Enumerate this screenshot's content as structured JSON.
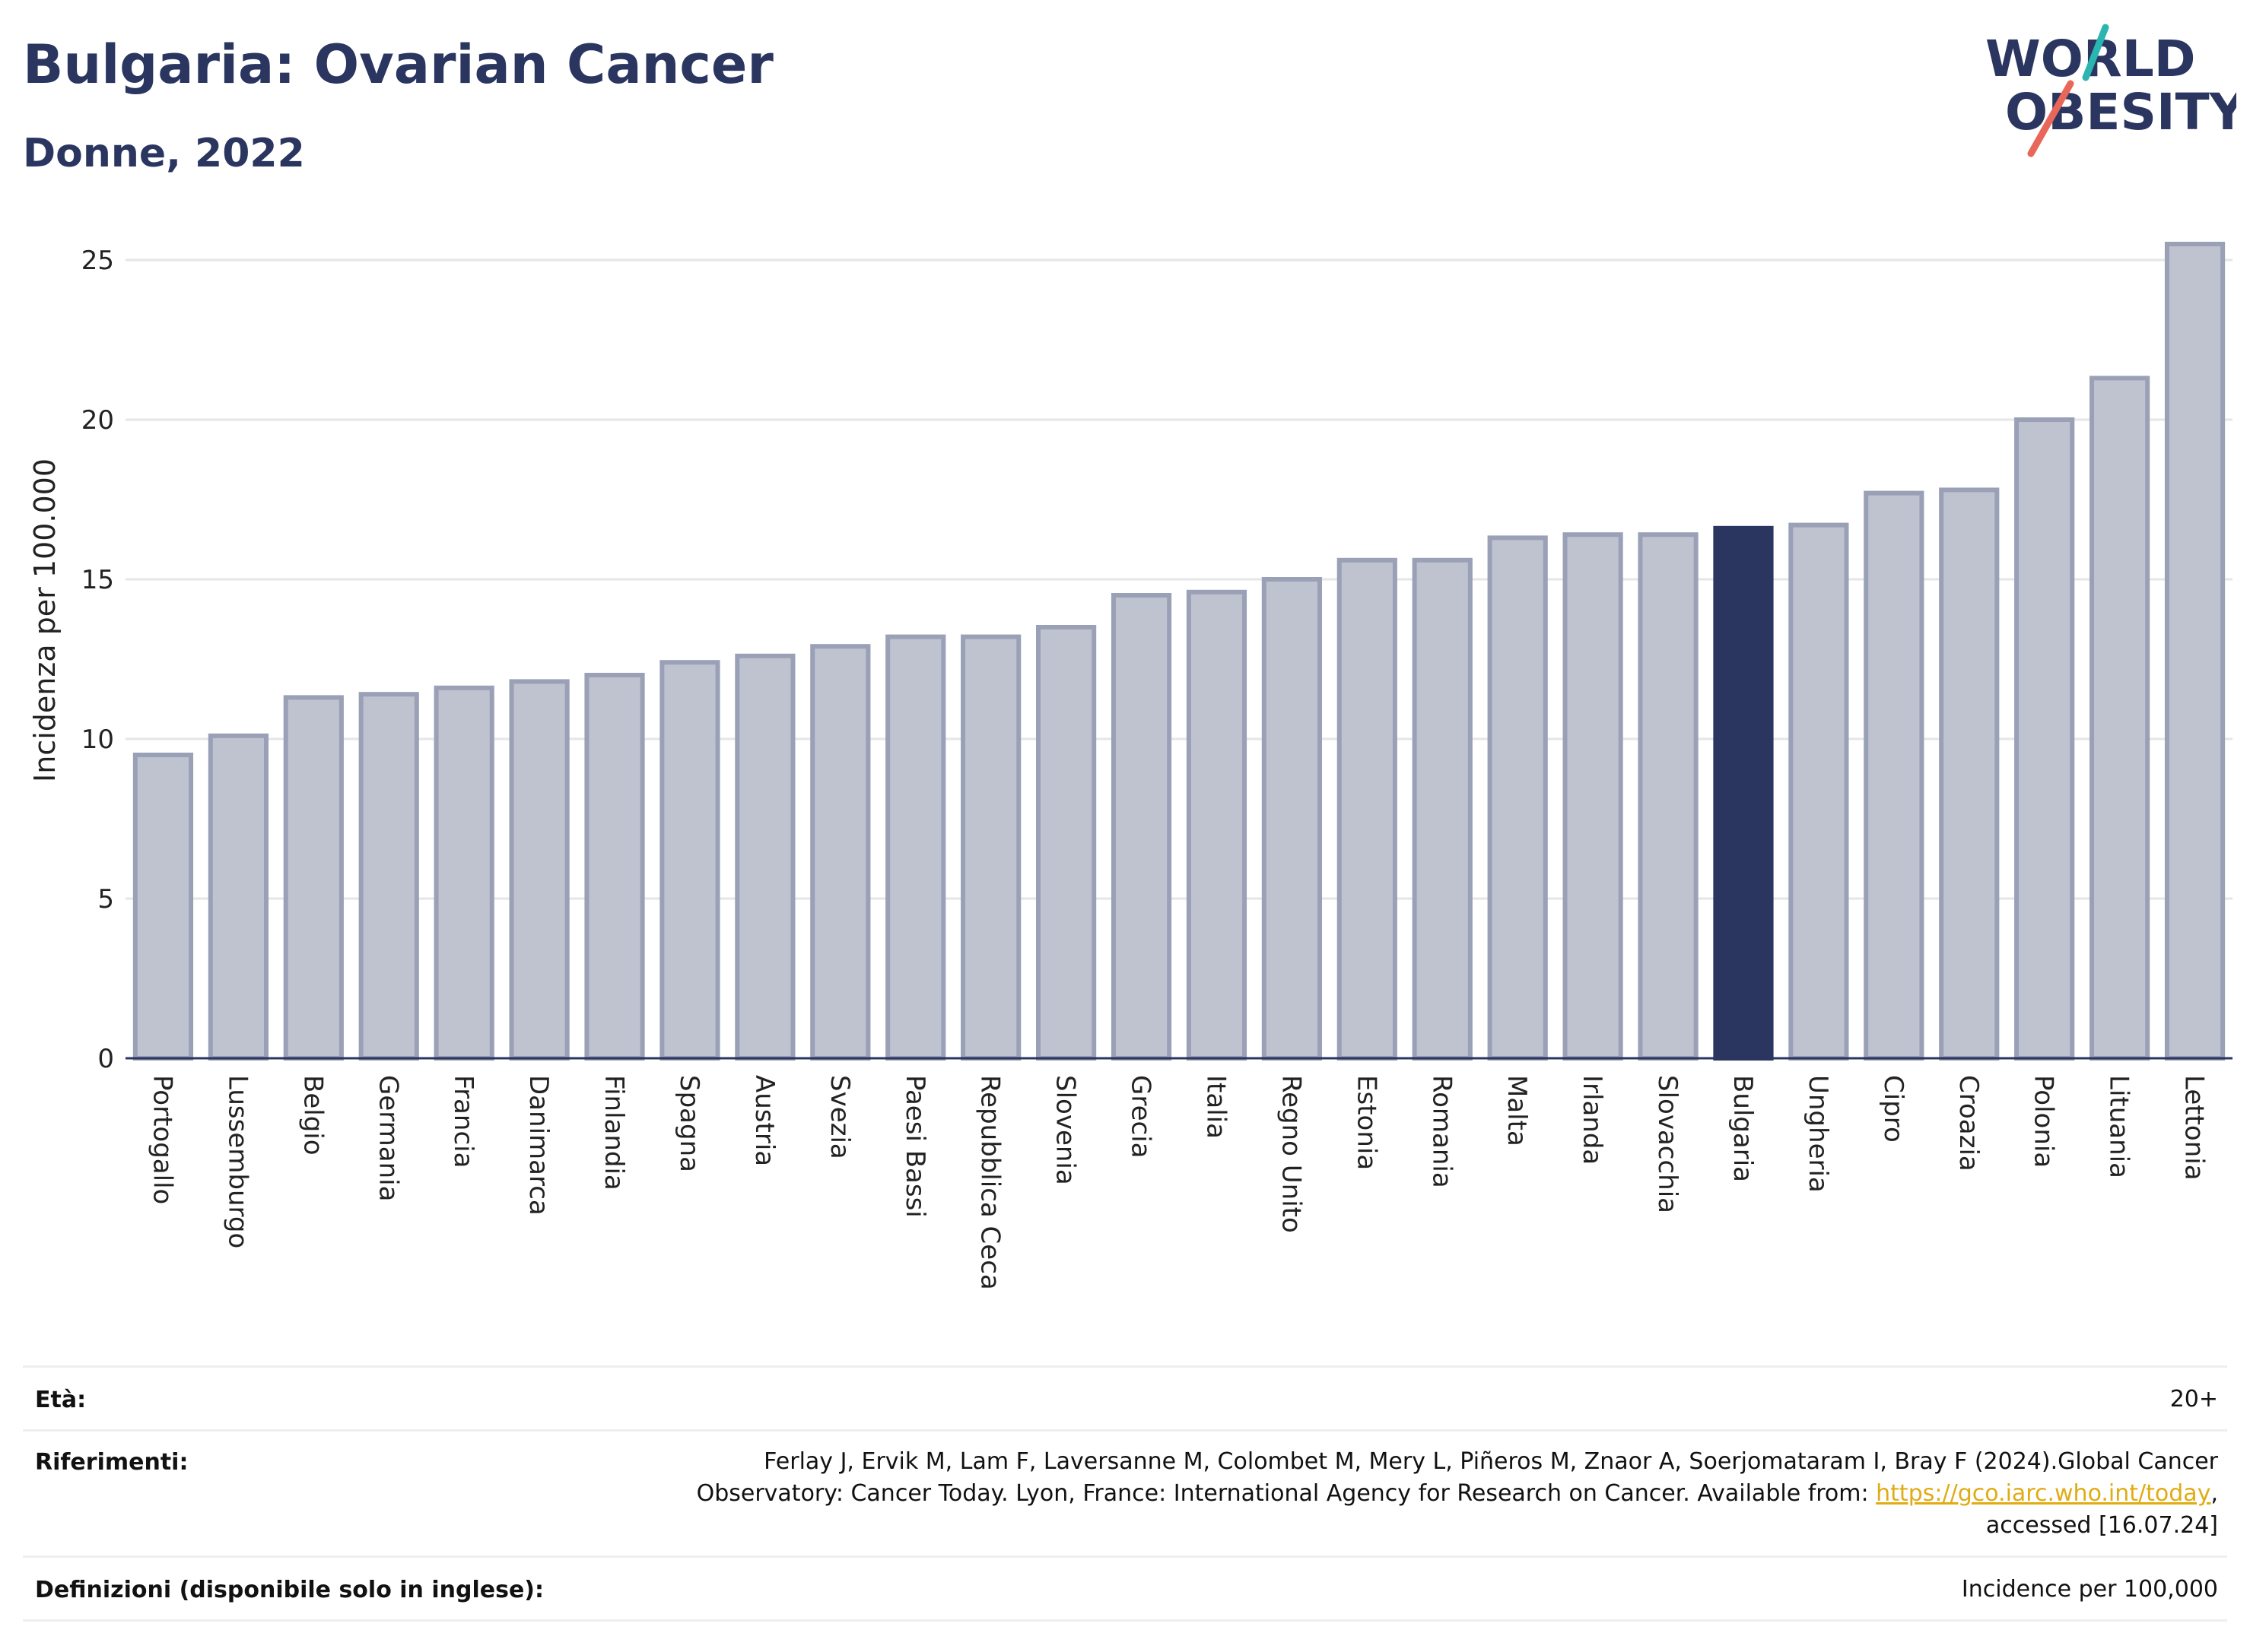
{
  "header": {
    "title": "Bulgaria: Ovarian Cancer",
    "subtitle": "Donne, 2022"
  },
  "logo": {
    "line1": "WORLD",
    "line2": "OBESITY",
    "colors": {
      "text": "#2a3560",
      "accent_teal": "#2bb5b0",
      "accent_red": "#e8675a"
    }
  },
  "colors": {
    "bar": "#bfc2cf",
    "bar_border": "#9aa0b6",
    "highlight": "#2a3560",
    "grid": "#e6e6e6",
    "axis": "#2a3560"
  },
  "chart_data": {
    "type": "bar",
    "ylabel": "Incidenza per 100.000",
    "xlabel": "",
    "ylim": [
      0,
      26
    ],
    "yticks": [
      0,
      5,
      10,
      15,
      20,
      25
    ],
    "grid": true,
    "highlight": "Bulgaria",
    "categories": [
      "Portogallo",
      "Lussemburgo",
      "Belgio",
      "Germania",
      "Francia",
      "Danimarca",
      "Finlandia",
      "Spagna",
      "Austria",
      "Svezia",
      "Paesi Bassi",
      "Repubblica Ceca",
      "Slovenia",
      "Grecia",
      "Italia",
      "Regno Unito",
      "Estonia",
      "Romania",
      "Malta",
      "Irlanda",
      "Slovacchia",
      "Bulgaria",
      "Ungheria",
      "Cipro",
      "Croazia",
      "Polonia",
      "Lituania",
      "Lettonia"
    ],
    "values": [
      9.5,
      10.1,
      11.3,
      11.4,
      11.6,
      11.8,
      12.0,
      12.4,
      12.6,
      12.9,
      13.2,
      13.2,
      13.5,
      14.5,
      14.6,
      15.0,
      15.6,
      15.6,
      16.3,
      16.4,
      16.4,
      16.6,
      16.7,
      17.7,
      17.8,
      20.0,
      21.3,
      25.5
    ]
  },
  "info": {
    "age_label": "Età:",
    "age_value": "20+",
    "ref_label": "Riferimenti:",
    "ref_line1": "Ferlay J, Ervik M, Lam F, Laversanne M, Colombet M, Mery L, Piñeros M, Znaor A, Soerjomataram I, Bray F (2024).Global Cancer",
    "ref_line2_pre": "Observatory: Cancer Today. Lyon, France: International Agency for Research on Cancer. Available from: ",
    "ref_link": "https://gco.iarc.who.int/today",
    "ref_line2_post": ",",
    "ref_line3": "accessed [16.07.24]",
    "def_label": "Definizioni (disponibile solo in inglese):",
    "def_value": "Incidence per 100,000"
  }
}
